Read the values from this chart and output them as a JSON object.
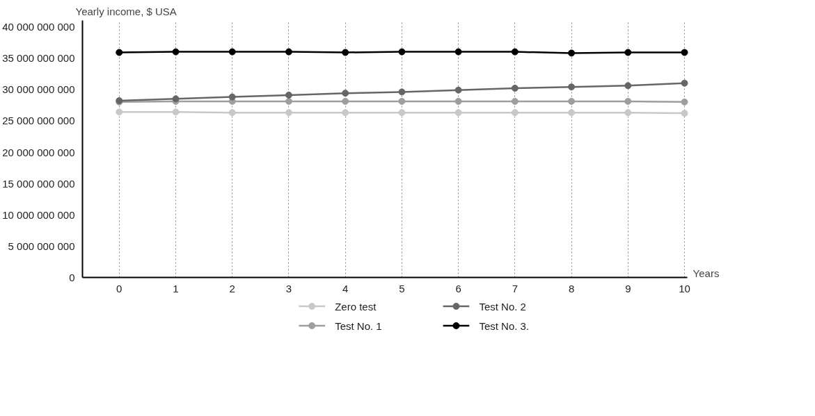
{
  "chart_data": {
    "type": "line",
    "xlabel": "Years",
    "ylabel": "Yearly income, $ USA",
    "x": [
      0,
      1,
      2,
      3,
      4,
      5,
      6,
      7,
      8,
      9,
      10
    ],
    "xlim": [
      -0.65,
      10.05
    ],
    "xticks": [
      0,
      1,
      2,
      3,
      4,
      5,
      6,
      7,
      8,
      9,
      10
    ],
    "ylim": [
      0,
      41000000000
    ],
    "yticks": [
      {
        "value": 0,
        "label": "0"
      },
      {
        "value": 5000000000,
        "label": "5 000 000 000"
      },
      {
        "value": 10000000000,
        "label": "10 000 000 000"
      },
      {
        "value": 15000000000,
        "label": "15 000 000 000"
      },
      {
        "value": 20000000000,
        "label": "20 000 000 000"
      },
      {
        "value": 25000000000,
        "label": "25 000 000 000"
      },
      {
        "value": 30000000000,
        "label": "30 000 000 000"
      },
      {
        "value": 35000000000,
        "label": "35 000 000 000"
      },
      {
        "value": 40000000000,
        "label": "40 000 000 000"
      }
    ],
    "grid": "x",
    "legend": "bottom",
    "marker": "circle",
    "line_style": "solid",
    "series": [
      {
        "name": "Zero test",
        "color": "#c8c8c8",
        "values": [
          26400000000,
          26400000000,
          26300000000,
          26300000000,
          26300000000,
          26300000000,
          26300000000,
          26300000000,
          26300000000,
          26300000000,
          26200000000
        ]
      },
      {
        "name": "Test No. 1",
        "color": "#9e9e9e",
        "values": [
          28000000000,
          28100000000,
          28100000000,
          28100000000,
          28100000000,
          28100000000,
          28100000000,
          28100000000,
          28100000000,
          28100000000,
          28000000000
        ]
      },
      {
        "name": "Test No. 2",
        "color": "#666666",
        "values": [
          28200000000,
          28500000000,
          28800000000,
          29100000000,
          29400000000,
          29600000000,
          29900000000,
          30200000000,
          30400000000,
          30600000000,
          31000000000
        ]
      },
      {
        "name": "Test No. 3.",
        "color": "#000000",
        "values": [
          35900000000,
          36000000000,
          36000000000,
          36000000000,
          35900000000,
          36000000000,
          36000000000,
          36000000000,
          35800000000,
          35900000000,
          35900000000
        ]
      }
    ]
  }
}
